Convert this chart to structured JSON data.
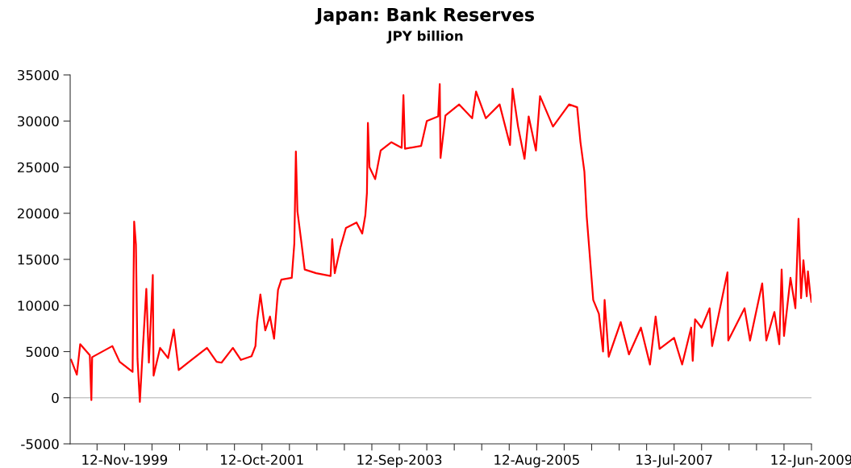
{
  "chart_data": {
    "type": "line",
    "title": "Japan: Bank Reserves",
    "subtitle": "JPY billion",
    "x": [
      "1999-02-13",
      "1999-03-14",
      "1999-03-31",
      "1999-05-19",
      "1999-05-27",
      "1999-05-31",
      "1999-09-11",
      "1999-10-18",
      "1999-12-23",
      "1999-12-31",
      "2000-01-09",
      "2000-01-17",
      "2000-01-29",
      "2000-02-11",
      "2000-03-02",
      "2000-03-15",
      "2000-04-04",
      "2000-04-08",
      "2000-05-11",
      "2000-06-21",
      "2000-07-20",
      "2000-08-14",
      "2000-10-06",
      "2001-01-05",
      "2001-02-23",
      "2001-03-20",
      "2001-05-17",
      "2001-06-27",
      "2001-08-20",
      "2001-09-09",
      "2001-09-17",
      "2001-10-04",
      "2001-10-29",
      "2001-11-22",
      "2001-12-13",
      "2002-01-02",
      "2002-01-19",
      "2002-03-13",
      "2002-03-26",
      "2002-04-03",
      "2002-04-11",
      "2002-05-02",
      "2002-05-18",
      "2002-07-15",
      "2002-09-27",
      "2002-10-05",
      "2002-10-18",
      "2002-11-16",
      "2002-12-14",
      "2003-02-06",
      "2003-03-07",
      "2003-03-23",
      "2003-03-31",
      "2003-04-05",
      "2003-04-13",
      "2003-05-12",
      "2003-06-09",
      "2003-08-02",
      "2003-09-24",
      "2003-10-03",
      "2003-10-11",
      "2004-01-01",
      "2004-01-30",
      "2004-03-28",
      "2004-04-05",
      "2004-04-09",
      "2004-05-04",
      "2004-07-13",
      "2004-09-17",
      "2004-10-07",
      "2004-11-26",
      "2005-02-04",
      "2005-03-29",
      "2005-04-11",
      "2005-05-09",
      "2005-06-11",
      "2005-07-02",
      "2005-08-08",
      "2005-08-29",
      "2005-11-03",
      "2006-01-24",
      "2006-03-06",
      "2006-03-23",
      "2006-04-12",
      "2006-04-24",
      "2006-05-07",
      "2006-05-27",
      "2006-06-25",
      "2006-07-16",
      "2006-07-24",
      "2006-08-14",
      "2006-10-14",
      "2006-11-25",
      "2007-01-25",
      "2007-03-12",
      "2007-04-10",
      "2007-04-30",
      "2007-07-13",
      "2007-08-23",
      "2007-10-08",
      "2007-10-16",
      "2007-10-28",
      "2007-11-30",
      "2008-01-10",
      "2008-01-23",
      "2008-04-10",
      "2008-04-14",
      "2008-07-06",
      "2008-08-03",
      "2008-10-04",
      "2008-10-25",
      "2008-12-05",
      "2008-12-30",
      "2009-01-11",
      "2009-01-23",
      "2009-02-25",
      "2009-03-22",
      "2009-04-07",
      "2009-04-20",
      "2009-05-02",
      "2009-05-19",
      "2009-05-25",
      "2009-06-05",
      "2009-06-12"
    ],
    "series": [
      {
        "color": "#ff0000",
        "values": [
          4100,
          2500,
          5800,
          4600,
          -250,
          4400,
          5600,
          3900,
          2800,
          19100,
          16600,
          4200,
          -450,
          4500,
          11800,
          3800,
          13300,
          2400,
          5400,
          4300,
          7400,
          3000,
          3900,
          5400,
          3900,
          3800,
          5400,
          4100,
          4500,
          5600,
          8200,
          11200,
          7300,
          8800,
          6400,
          11700,
          12800,
          13000,
          16700,
          26700,
          20200,
          16700,
          13900,
          13500,
          13200,
          17200,
          13500,
          16300,
          18400,
          19000,
          17800,
          19800,
          22200,
          29800,
          25000,
          23700,
          26800,
          27700,
          27100,
          32800,
          27000,
          27300,
          30000,
          30500,
          34000,
          26000,
          30600,
          31800,
          30300,
          33200,
          30300,
          31800,
          27400,
          33500,
          29400,
          25900,
          30500,
          26800,
          32700,
          29400,
          31800,
          31500,
          27700,
          24500,
          19600,
          16100,
          10600,
          9100,
          5000,
          10600,
          4450,
          8200,
          4700,
          7600,
          3600,
          8800,
          5300,
          6500,
          3600,
          7600,
          4000,
          8500,
          7600,
          9700,
          5600,
          13600,
          6200,
          9700,
          6200,
          12400,
          6200,
          9300,
          5800,
          13900,
          6700,
          13000,
          9700,
          19400,
          10800,
          14900,
          11000,
          13700,
          11400,
          10400
        ]
      }
    ],
    "xlim": [
      "1999-02-08",
      "2009-06-12"
    ],
    "xticks": [
      {
        "value": "1999-06-25",
        "label": null
      },
      {
        "value": "1999-11-12",
        "label": "12-Nov-1999"
      },
      {
        "value": "2000-03-31",
        "label": null
      },
      {
        "value": "2000-08-18",
        "label": null
      },
      {
        "value": "2001-01-05",
        "label": null
      },
      {
        "value": "2001-05-25",
        "label": null
      },
      {
        "value": "2001-10-12",
        "label": "12-Oct-2001"
      },
      {
        "value": "2002-03-01",
        "label": null
      },
      {
        "value": "2002-07-19",
        "label": null
      },
      {
        "value": "2002-12-06",
        "label": null
      },
      {
        "value": "2003-04-25",
        "label": null
      },
      {
        "value": "2003-09-12",
        "label": "12-Sep-2003"
      },
      {
        "value": "2004-01-30",
        "label": null
      },
      {
        "value": "2004-06-18",
        "label": null
      },
      {
        "value": "2004-11-05",
        "label": null
      },
      {
        "value": "2005-03-25",
        "label": null
      },
      {
        "value": "2005-08-12",
        "label": "12-Aug-2005"
      },
      {
        "value": "2005-12-30",
        "label": null
      },
      {
        "value": "2006-05-19",
        "label": null
      },
      {
        "value": "2006-10-06",
        "label": null
      },
      {
        "value": "2007-02-23",
        "label": null
      },
      {
        "value": "2007-07-13",
        "label": "13-Jul-2007"
      },
      {
        "value": "2007-11-30",
        "label": null
      },
      {
        "value": "2008-04-18",
        "label": null
      },
      {
        "value": "2008-09-05",
        "label": null
      },
      {
        "value": "2009-01-23",
        "label": null
      },
      {
        "value": "2009-06-12",
        "label": "12-Jun-2009"
      }
    ],
    "ylim": [
      -5000,
      35000
    ],
    "yticks": [
      -5000,
      0,
      5000,
      10000,
      15000,
      20000,
      25000,
      30000,
      35000
    ],
    "ref_lines": [
      {
        "axis": "y",
        "value": 0,
        "color": "#c8c8c8"
      }
    ],
    "grid": false,
    "legend": false
  }
}
